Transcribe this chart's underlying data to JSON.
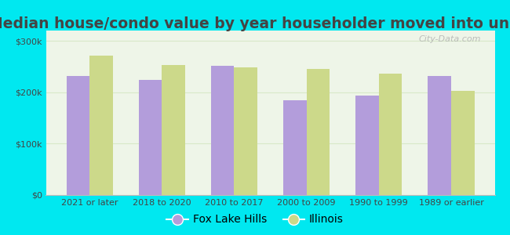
{
  "title": "Median house/condo value by year householder moved into unit",
  "categories": [
    "2021 or later",
    "2018 to 2020",
    "2010 to 2017",
    "2000 to 2009",
    "1990 to 1999",
    "1989 or earlier"
  ],
  "fox_lake_hills": [
    232000,
    224000,
    252000,
    184000,
    193000,
    232000
  ],
  "illinois": [
    271000,
    253000,
    248000,
    245000,
    236000,
    202000
  ],
  "fox_color": "#b39ddb",
  "illinois_color": "#ccd98a",
  "background_outer": "#00e8f0",
  "background_inner": "#eef5e8",
  "ylim": [
    0,
    320000
  ],
  "yticks": [
    0,
    100000,
    200000,
    300000
  ],
  "ytick_labels": [
    "$0",
    "$100k",
    "$200k",
    "$300k"
  ],
  "legend_fox": "Fox Lake Hills",
  "legend_illinois": "Illinois",
  "watermark": "City-Data.com",
  "bar_width": 0.32,
  "title_fontsize": 13.5,
  "tick_fontsize": 8,
  "grid_color": "#d8e8c8",
  "text_color": "#444444"
}
